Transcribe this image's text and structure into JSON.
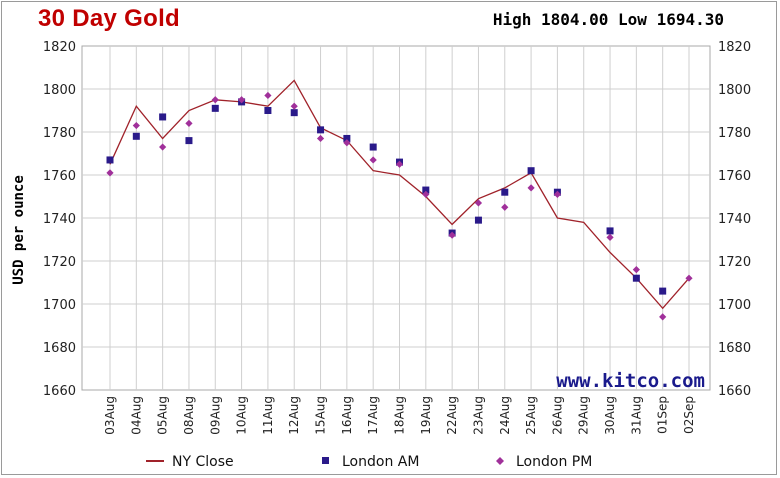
{
  "header": {
    "title": "30 Day Gold",
    "high_low": "High 1804.00 Low 1694.30"
  },
  "watermark": "www.kitco.com",
  "colors": {
    "ny_close": "#a0222a",
    "london_am": "#2a1a8a",
    "london_pm": "#a0309a",
    "grid": "#cfcfcf",
    "title": "#c00000"
  },
  "chart_data": {
    "type": "line",
    "title": "30 Day Gold",
    "ylabel": "USD per ounce",
    "xlabel": "",
    "ylim": [
      1660,
      1820
    ],
    "yticks": [
      1660,
      1680,
      1700,
      1720,
      1740,
      1760,
      1780,
      1800,
      1820
    ],
    "grid": true,
    "legend_position": "bottom",
    "categories": [
      "03Aug",
      "04Aug",
      "05Aug",
      "08Aug",
      "09Aug",
      "10Aug",
      "11Aug",
      "12Aug",
      "15Aug",
      "16Aug",
      "17Aug",
      "18Aug",
      "19Aug",
      "22Aug",
      "23Aug",
      "24Aug",
      "25Aug",
      "26Aug",
      "29Aug",
      "30Aug",
      "31Aug",
      "01Sep",
      "02Sep"
    ],
    "series": [
      {
        "name": "NY Close",
        "marker": "line",
        "values": [
          1765,
          1792,
          1777,
          1790,
          1795,
          1794,
          1792,
          1804,
          1782,
          1776,
          1762,
          1760,
          1750,
          1737,
          1749,
          1754,
          1761,
          1740,
          1738,
          1724,
          1712,
          1698,
          1712
        ]
      },
      {
        "name": "London AM",
        "marker": "square",
        "values": [
          1767,
          1778,
          1787,
          1776,
          1791,
          1794,
          1790,
          1789,
          1781,
          1777,
          1773,
          1766,
          1753,
          1733,
          1739,
          1752,
          1762,
          1752,
          null,
          1734,
          1712,
          1706,
          null
        ]
      },
      {
        "name": "London PM",
        "marker": "diamond",
        "values": [
          1761,
          1783,
          1773,
          1784,
          1795,
          1795,
          1797,
          1792,
          1777,
          1775,
          1767,
          1765,
          1751,
          1732,
          1747,
          1745,
          1754,
          1751,
          null,
          1731,
          1716,
          1694,
          1712
        ]
      }
    ]
  }
}
